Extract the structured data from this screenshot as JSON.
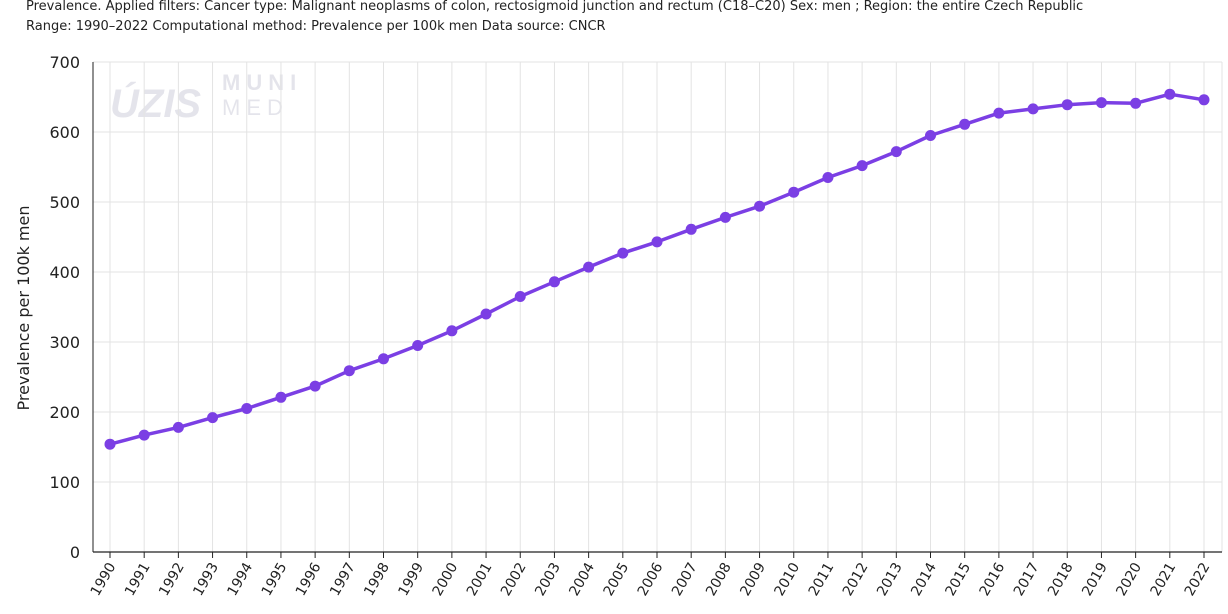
{
  "caption": {
    "line1": "Prevalence. Applied filters: Cancer type: Malignant neoplasms of colon, rectosigmoid junction and rectum (C18–C20) Sex: men ; Region: the entire Czech Republic",
    "line2": "Range: 1990–2022 Computational method: Prevalence per 100k men Data source: CNCR"
  },
  "watermark": {
    "left": "ÚZIS",
    "right_top": "MUNI",
    "right_bottom": "MED"
  },
  "colors": {
    "series": "#7B3FE4",
    "grid": "#e3e3e3",
    "axis": "#222222"
  },
  "chart_data": {
    "type": "line",
    "ylabel": "Prevalence per 100k men",
    "ylim": [
      0,
      700
    ],
    "yticks": [
      0,
      100,
      200,
      300,
      400,
      500,
      600,
      700
    ],
    "grid": true,
    "x": [
      "1990",
      "1991",
      "1992",
      "1993",
      "1994",
      "1995",
      "1996",
      "1997",
      "1998",
      "1999",
      "2000",
      "2001",
      "2002",
      "2003",
      "2004",
      "2005",
      "2006",
      "2007",
      "2008",
      "2009",
      "2010",
      "2011",
      "2012",
      "2013",
      "2014",
      "2015",
      "2016",
      "2017",
      "2018",
      "2019",
      "2020",
      "2021",
      "2022"
    ],
    "series": [
      {
        "values": [
          154,
          167,
          178,
          192,
          205,
          221,
          237,
          259,
          276,
          295,
          316,
          340,
          365,
          386,
          407,
          427,
          443,
          461,
          478,
          494,
          514,
          535,
          552,
          572,
          595,
          611,
          627,
          633,
          639,
          642,
          641,
          654,
          646
        ]
      }
    ]
  }
}
